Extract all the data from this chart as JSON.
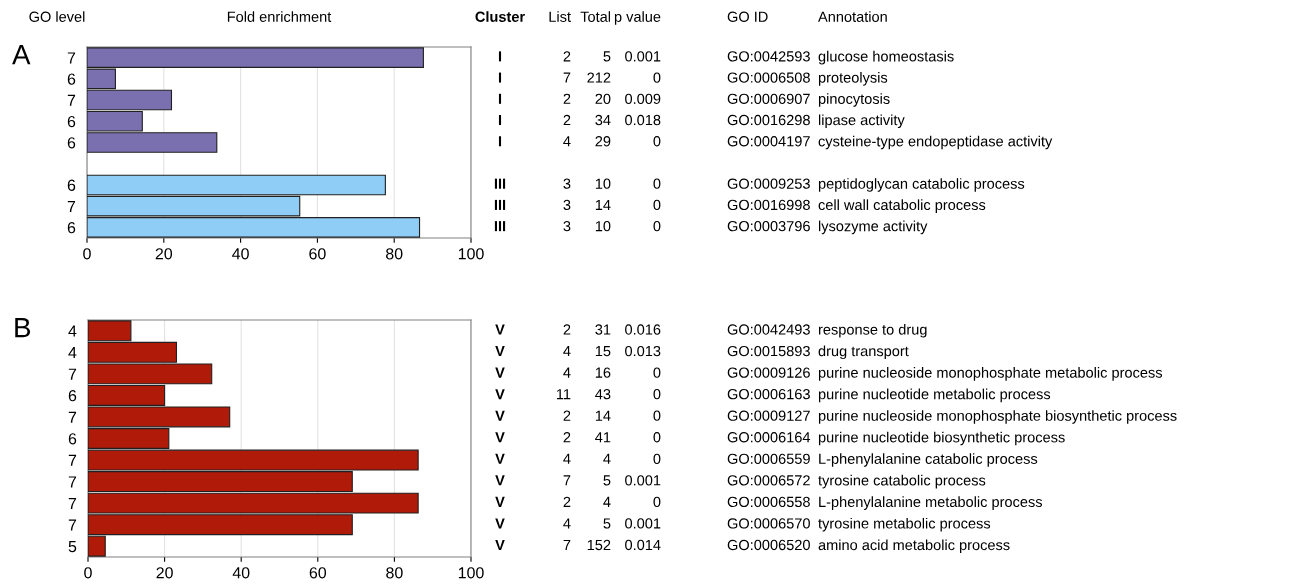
{
  "chart_data": [
    {
      "type": "bar",
      "orientation": "horizontal",
      "title": "Fold enrichment",
      "ylabel": "GO level",
      "annotations": [
        "A"
      ],
      "categories": [
        "7",
        "6",
        "7",
        "6",
        "6",
        null,
        "6",
        "7",
        "6"
      ],
      "values": [
        87.6,
        7.4,
        22,
        14.4,
        33.8,
        null,
        77.7,
        55.4,
        86.6
      ],
      "colors": [
        "#7a70b0",
        "#7a70b0",
        "#7a70b0",
        "#7a70b0",
        "#7a70b0",
        null,
        "#8fcdf6",
        "#8fcdf6",
        "#8fcdf6"
      ],
      "xlim": [
        0,
        100
      ],
      "xticks": [
        0,
        20,
        40,
        60,
        80,
        100
      ],
      "grid": "x"
    },
    {
      "type": "other",
      "categories": [
        "Cluster",
        "List",
        "Total",
        "p value",
        "GO ID",
        "Annotation"
      ],
      "cell_labels": [
        [
          "I",
          "2",
          "5",
          "0.001",
          "GO:0042593",
          "glucose homeostasis"
        ],
        [
          "I",
          "7",
          "212",
          "0",
          "GO:0006508",
          "proteolysis"
        ],
        [
          "I",
          "2",
          "20",
          "0.009",
          "GO:0006907",
          "pinocytosis"
        ],
        [
          "I",
          "2",
          "34",
          "0.018",
          "GO:0016298",
          "lipase activity"
        ],
        [
          "I",
          "4",
          "29",
          "0",
          "GO:0004197",
          "cysteine-type endopeptidase activity"
        ],
        [
          null,
          null,
          null,
          null,
          null,
          null
        ],
        [
          "III",
          "3",
          "10",
          "0",
          "GO:0009253",
          "peptidoglycan catabolic process"
        ],
        [
          "III",
          "3",
          "14",
          "0",
          "GO:0016998",
          "cell wall catabolic process"
        ],
        [
          "III",
          "3",
          "10",
          "0",
          "GO:0003796",
          "lysozyme activity"
        ]
      ]
    },
    {
      "type": "bar",
      "orientation": "horizontal",
      "annotations": [
        "B"
      ],
      "categories": [
        "4",
        "4",
        "7",
        "6",
        "7",
        "6",
        "7",
        "7",
        "7",
        "7",
        "5"
      ],
      "values": [
        11.2,
        23.1,
        32.3,
        20,
        37,
        21.1,
        86.2,
        69,
        86.2,
        69,
        4.5
      ],
      "colors": [
        "#b01a08",
        "#b01a08",
        "#b01a08",
        "#b01a08",
        "#b01a08",
        "#b01a08",
        "#b01a08",
        "#b01a08",
        "#b01a08",
        "#b01a08",
        "#b01a08"
      ],
      "xlim": [
        0,
        100
      ],
      "xticks": [
        0,
        20,
        40,
        60,
        80,
        100
      ],
      "grid": "x"
    },
    {
      "type": "other",
      "cell_labels": [
        [
          "V",
          "2",
          "31",
          "0.016",
          "GO:0042493",
          "response to drug"
        ],
        [
          "V",
          "4",
          "15",
          "0.013",
          "GO:0015893",
          "drug transport"
        ],
        [
          "V",
          "4",
          "16",
          "0",
          "GO:0009126",
          "purine nucleoside monophosphate metabolic process"
        ],
        [
          "V",
          "11",
          "43",
          "0",
          "GO:0006163",
          "purine nucleotide metabolic process"
        ],
        [
          "V",
          "2",
          "14",
          "0",
          "GO:0009127",
          "purine nucleoside monophosphate biosynthetic process"
        ],
        [
          "V",
          "2",
          "41",
          "0",
          "GO:0006164",
          "purine nucleotide biosynthetic process"
        ],
        [
          "V",
          "4",
          "4",
          "0",
          "GO:0006559",
          "L-phenylalanine catabolic process"
        ],
        [
          "V",
          "7",
          "5",
          "0.001",
          "GO:0006572",
          "tyrosine catabolic process"
        ],
        [
          "V",
          "2",
          "4",
          "0",
          "GO:0006558",
          "L-phenylalanine metabolic process"
        ],
        [
          "V",
          "4",
          "5",
          "0.001",
          "GO:0006570",
          "tyrosine metabolic process"
        ],
        [
          "V",
          "7",
          "152",
          "0.014",
          "GO:0006520",
          "amino acid metabolic process"
        ]
      ]
    }
  ]
}
